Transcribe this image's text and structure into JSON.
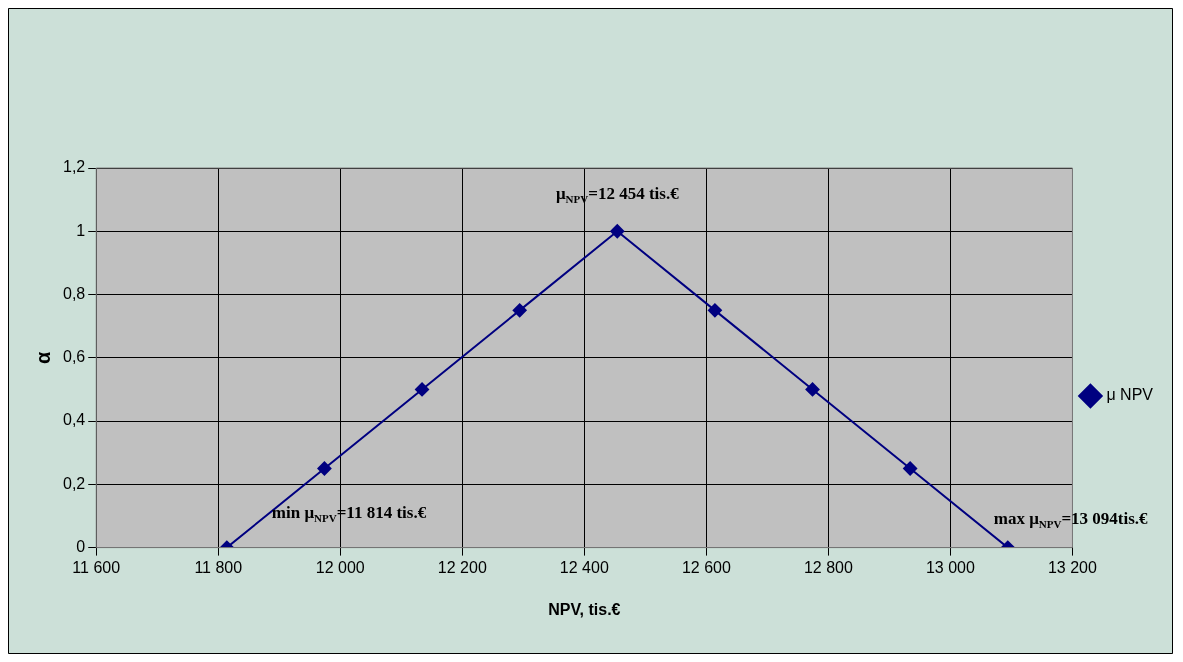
{
  "chart_data": {
    "type": "line",
    "xlabel": "NPV, tis.€",
    "ylabel": "α",
    "x": [
      11814,
      11974,
      12134,
      12294,
      12454,
      12614,
      12774,
      12934,
      13094
    ],
    "series": [
      {
        "name": "μ NPV",
        "color": "#000080",
        "values": [
          0,
          0.25,
          0.5,
          0.75,
          1,
          0.75,
          0.5,
          0.25,
          0
        ]
      }
    ],
    "xlim": [
      11600,
      13200
    ],
    "xticks": [
      {
        "value": 11600,
        "label": "11 600"
      },
      {
        "value": 11800,
        "label": "11 800"
      },
      {
        "value": 12000,
        "label": "12 000"
      },
      {
        "value": 12200,
        "label": "12 200"
      },
      {
        "value": 12400,
        "label": "12 400"
      },
      {
        "value": 12600,
        "label": "12 600"
      },
      {
        "value": 12800,
        "label": "12 800"
      },
      {
        "value": 13000,
        "label": "13 000"
      },
      {
        "value": 13200,
        "label": "13 200"
      }
    ],
    "ylim": [
      0,
      1.2
    ],
    "yticks": [
      0,
      {
        "value": 0.2,
        "label": "0,2"
      },
      {
        "value": 0.4,
        "label": "0,4"
      },
      {
        "value": 0.6,
        "label": "0,6"
      },
      {
        "value": 0.8,
        "label": "0,8"
      },
      1,
      {
        "value": 1.2,
        "label": "1,2"
      }
    ],
    "annotations": [
      {
        "text": "min μ$_{NPV}$=11 814 tis.€",
        "x": 11814,
        "y": 0
      },
      {
        "text": "μ$_{NPV}$=12 454 tis.€",
        "x": 12454,
        "y": 1
      },
      {
        "text": "max μ$_{NPV}$=13 094tis.€",
        "x": 13094,
        "y": 0
      }
    ],
    "grid": true,
    "legend": "right",
    "marker": "diamond",
    "line_style": "solid"
  }
}
